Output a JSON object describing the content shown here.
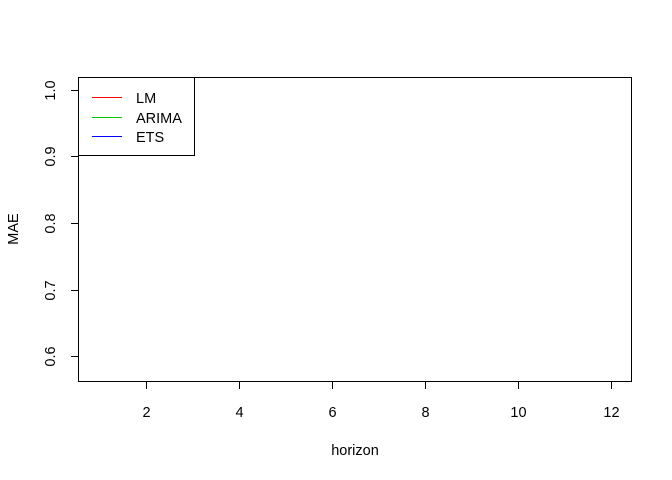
{
  "chart_data": {
    "type": "line",
    "title": "",
    "xlabel": "horizon",
    "ylabel": "MAE",
    "xlim": [
      0.55,
      12.45
    ],
    "ylim": [
      0.562,
      1.018
    ],
    "x_ticks": [
      2,
      4,
      6,
      8,
      10,
      12
    ],
    "y_ticks": [
      0.6,
      0.7,
      0.8,
      0.9,
      1.0
    ],
    "y_tick_labels": [
      "0.6",
      "0.7",
      "0.8",
      "0.9",
      "1.0"
    ],
    "x_tick_labels": [
      "2",
      "4",
      "6",
      "8",
      "10",
      "12"
    ],
    "grid": false,
    "legend_position": "top-left",
    "series": [
      {
        "name": "LM",
        "color": "#ff0000",
        "x": [],
        "y": []
      },
      {
        "name": "ARIMA",
        "color": "#00cd00",
        "x": [],
        "y": []
      },
      {
        "name": "ETS",
        "color": "#0000ff",
        "x": [],
        "y": []
      }
    ]
  }
}
